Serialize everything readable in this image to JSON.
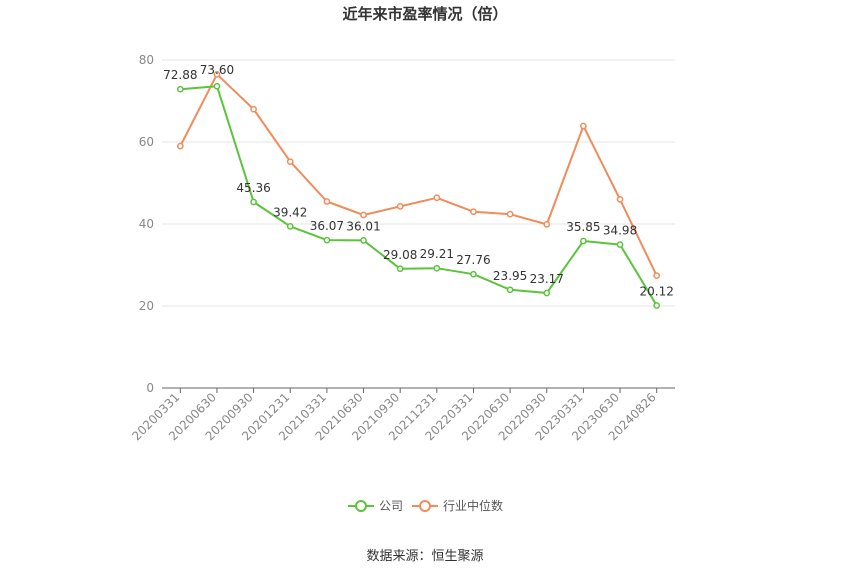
{
  "chart_data": {
    "type": "line",
    "title": "近年来市盈率情况（倍）",
    "categories": [
      "20200331",
      "20200630",
      "20200930",
      "20201231",
      "20210331",
      "20210630",
      "20210930",
      "20211231",
      "20220331",
      "20220630",
      "20220930",
      "20230331",
      "20230630",
      "20240826"
    ],
    "series": [
      {
        "name": "公司",
        "color": "#5ac43b",
        "values": [
          72.88,
          73.6,
          45.36,
          39.42,
          36.07,
          36.01,
          29.08,
          29.21,
          27.76,
          23.95,
          23.17,
          35.85,
          34.98,
          20.12
        ],
        "labels": [
          "72.88",
          "73.60",
          "45.36",
          "39.42",
          "36.07",
          "36.01",
          "29.08",
          "29.21",
          "27.76",
          "23.95",
          "23.17",
          "35.85",
          "34.98",
          "20.12"
        ]
      },
      {
        "name": "行业中位数",
        "color": "#f08c5a",
        "values": [
          59.0,
          76.5,
          68.0,
          55.2,
          45.5,
          42.2,
          44.3,
          46.4,
          43.0,
          42.4,
          39.9,
          63.9,
          46.0,
          27.4
        ]
      }
    ],
    "ylim": [
      0,
      80
    ],
    "yticks": [
      0,
      20,
      40,
      60,
      80
    ],
    "grid": true,
    "legend_position": "bottom-center",
    "source": "数据来源：恒生聚源"
  }
}
